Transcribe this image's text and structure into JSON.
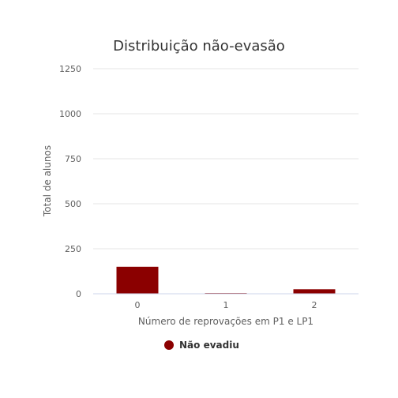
{
  "chart_data": {
    "type": "bar",
    "title": "Distribuição não-evasão",
    "xlabel": "Número de reprovações em P1 e LP1",
    "ylabel": "Total de alunos",
    "categories": [
      "0",
      "1",
      "2"
    ],
    "ylim": [
      0,
      1250
    ],
    "yticks": [
      0,
      250,
      500,
      750,
      1000,
      1250
    ],
    "series": [
      {
        "name": "Não evadiu",
        "values": [
          150,
          4,
          25
        ],
        "color": "#8b0000"
      }
    ],
    "grid": true,
    "legend_position": "bottom-center"
  }
}
